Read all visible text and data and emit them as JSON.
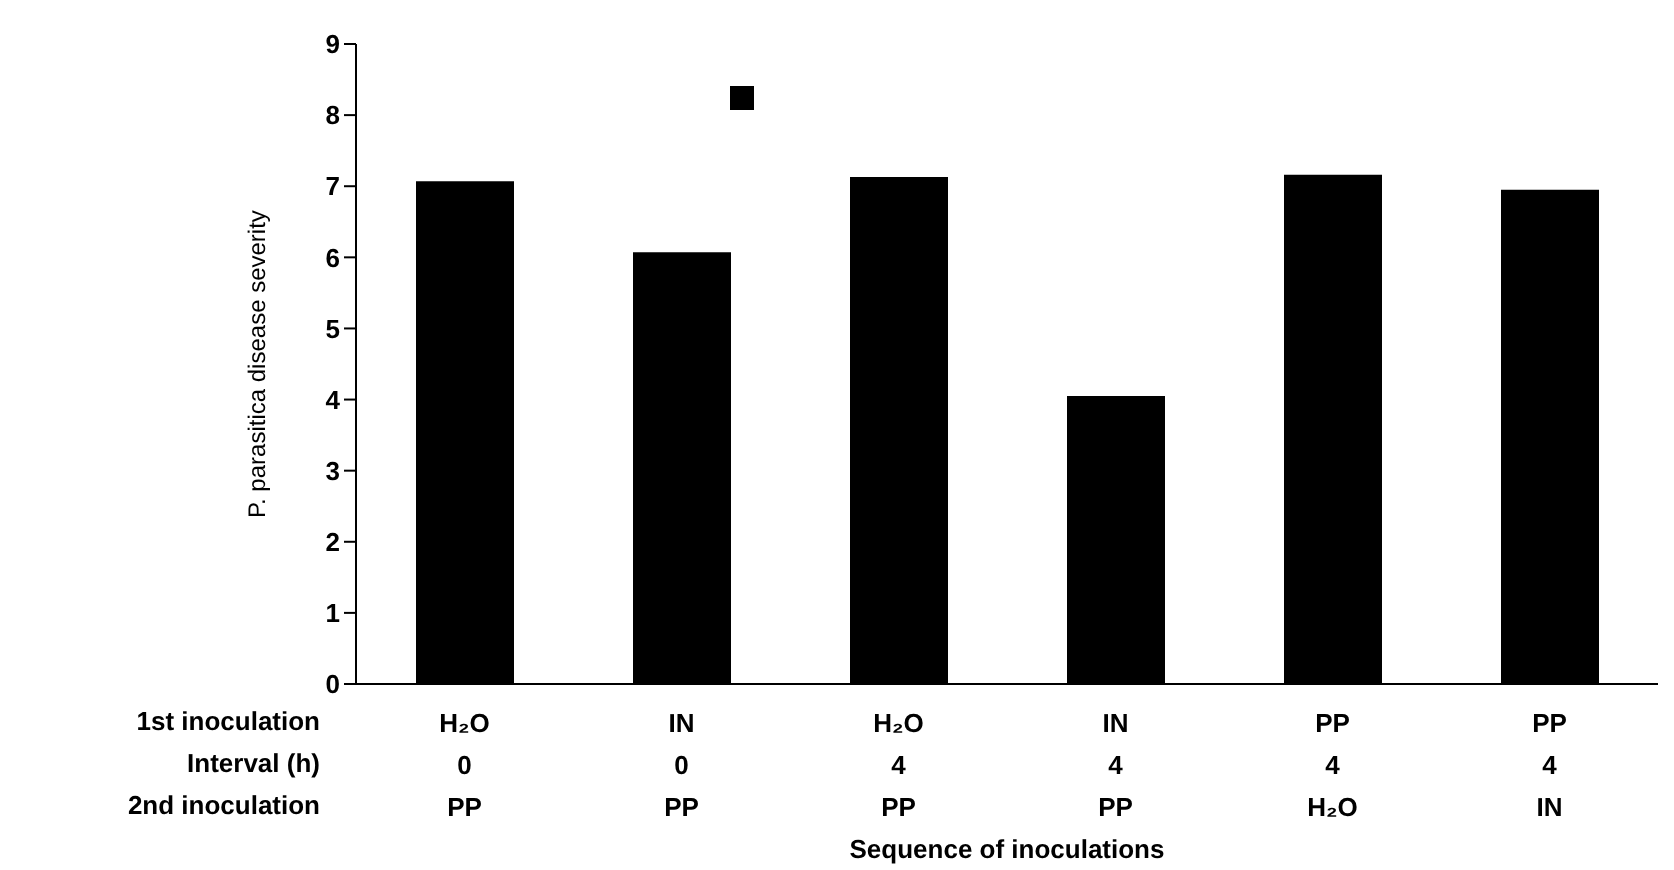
{
  "chart_data": {
    "type": "bar",
    "xlabel": "Sequence of inoculations",
    "ylabel": "P. parasitica disease severity",
    "categories": [
      "H₂O\n0\nPP",
      "IN\n0\nPP",
      "H₂O\n4\nPP",
      "IN\n4\nPP",
      "PP\n4\nH₂O",
      "PP\n4\nIN"
    ],
    "values": [
      7.07,
      6.07,
      7.13,
      4.05,
      7.16,
      6.95
    ],
    "color": "#000000",
    "ylim": [
      0,
      9
    ],
    "yticks": [
      0,
      1,
      2,
      3,
      4,
      5,
      6,
      7,
      8,
      9
    ],
    "grid": false,
    "legend": false,
    "annotations": [
      "1st inoculation",
      "Interval (h)",
      "2nd inoculation"
    ]
  }
}
